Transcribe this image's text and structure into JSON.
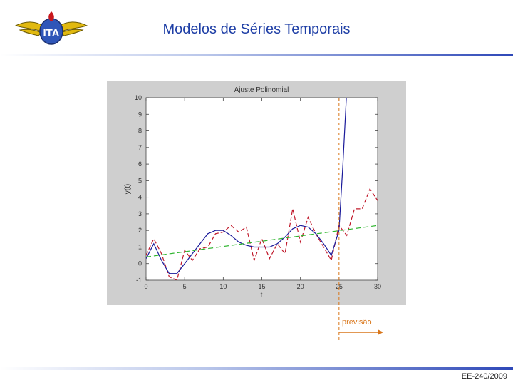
{
  "slide": {
    "title": "Modelos de Séries Temporais",
    "footer": "EE-240/2009",
    "logo_text": "ITA"
  },
  "chart_data": {
    "type": "line",
    "title": "Ajuste Polinomial",
    "xlabel": "t",
    "ylabel": "y(t)",
    "xlim": [
      0,
      30
    ],
    "ylim": [
      -1,
      10
    ],
    "xticks": [
      "0",
      "5",
      "10",
      "15",
      "20",
      "25",
      "30"
    ],
    "yticks": [
      "-1",
      "0",
      "1",
      "2",
      "3",
      "4",
      "5",
      "6",
      "7",
      "8",
      "9",
      "10"
    ],
    "series": [
      {
        "color": "#c0182a",
        "dash": "6 3",
        "x": [
          0,
          1,
          2,
          3,
          4,
          5,
          6,
          7,
          8,
          9,
          10,
          11,
          12,
          13,
          14,
          15,
          16,
          17,
          18,
          19,
          20,
          21,
          22,
          23,
          24,
          25,
          26,
          27,
          28,
          29,
          30
        ],
        "y": [
          0.5,
          1.5,
          0.6,
          -0.8,
          -1.0,
          0.8,
          0.2,
          0.9,
          1.0,
          1.8,
          1.9,
          2.3,
          1.9,
          2.2,
          0.2,
          1.5,
          0.3,
          1.2,
          0.6,
          3.3,
          1.3,
          2.8,
          1.8,
          1.0,
          0.2,
          2.3,
          1.7,
          3.3,
          3.3,
          4.5,
          3.8
        ]
      },
      {
        "color": "#1a1a9a",
        "dash": "",
        "x": [
          0,
          1,
          2,
          3,
          4,
          5,
          6,
          7,
          8,
          9,
          10,
          11,
          12,
          13,
          14,
          15,
          16,
          17,
          18,
          19,
          20,
          21,
          22,
          23,
          24,
          25,
          25.5,
          26
        ],
        "y": [
          0.3,
          1.2,
          0.2,
          -0.6,
          -0.6,
          0.0,
          0.6,
          1.2,
          1.8,
          2.0,
          2.0,
          1.7,
          1.3,
          1.1,
          1.0,
          1.0,
          1.0,
          1.2,
          1.6,
          2.1,
          2.3,
          2.2,
          1.8,
          1.2,
          0.5,
          2.0,
          6.0,
          10.5
        ]
      },
      {
        "color": "#2fb52f",
        "dash": "7 4",
        "x": [
          0,
          30
        ],
        "y": [
          0.4,
          2.3
        ]
      }
    ],
    "forecast_marker": {
      "x": 25,
      "label": "previsão",
      "color": "#d9761a"
    }
  }
}
